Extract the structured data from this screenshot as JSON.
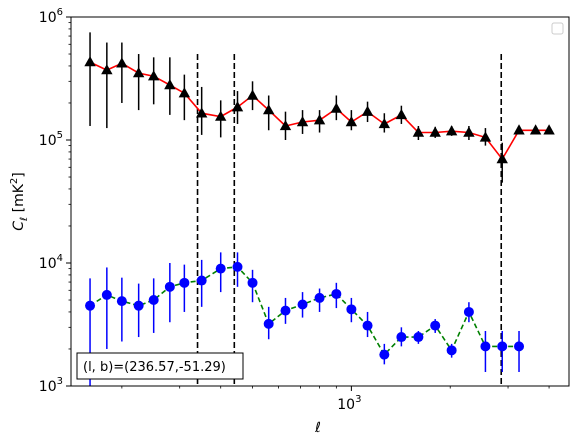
{
  "chart_data": {
    "type": "line",
    "title": "",
    "xlabel": "ℓ",
    "ylabel": "C_ℓ [mK²]",
    "xscale": "log",
    "yscale": "log",
    "xlim": [
      140,
      4600
    ],
    "ylim": [
      1000,
      1000000
    ],
    "x_ticks": [
      {
        "value": 1000,
        "base": "10",
        "exp": "3"
      }
    ],
    "y_ticks": [
      {
        "value": 1000,
        "base": "10",
        "exp": "3"
      },
      {
        "value": 10000,
        "base": "10",
        "exp": "4"
      },
      {
        "value": 100000,
        "base": "10",
        "exp": "5"
      },
      {
        "value": 1000000,
        "base": "10",
        "exp": "6"
      }
    ],
    "vlines": [
      {
        "x": 340,
        "ymin": 1000,
        "ymax": 500000
      },
      {
        "x": 440,
        "ymin": 1000,
        "ymax": 500000
      },
      {
        "x": 2860,
        "ymin": 1000,
        "ymax": 500000
      }
    ],
    "annotation": "(l, b)=(236.57,-51.29)",
    "legend": "top-right (empty)",
    "series": [
      {
        "line_color": "#ff0000",
        "line_style": "solid",
        "marker": "triangle",
        "marker_color": "#000000",
        "error_color": "#000000",
        "x": [
          160,
          180,
          200,
          225,
          250,
          280,
          310,
          350,
          400,
          450,
          500,
          560,
          630,
          710,
          800,
          900,
          1000,
          1120,
          1260,
          1420,
          1600,
          1800,
          2020,
          2280,
          2560,
          2880,
          3240,
          3640,
          4000
        ],
        "y": [
          430000,
          370000,
          420000,
          350000,
          330000,
          280000,
          240000,
          165000,
          155000,
          185000,
          230000,
          175000,
          130000,
          140000,
          145000,
          180000,
          140000,
          170000,
          135000,
          160000,
          115000,
          115000,
          118000,
          115000,
          105000,
          70000,
          120000,
          120000,
          120000
        ],
        "yerr_low": [
          130000,
          125000,
          200000,
          175000,
          195000,
          160000,
          145000,
          110000,
          105000,
          135000,
          175000,
          120000,
          100000,
          112000,
          115000,
          145000,
          120000,
          140000,
          115000,
          135000,
          100000,
          104000,
          108000,
          100000,
          90000,
          45000,
          120000,
          120000,
          120000
        ],
        "yerr_high": [
          750000,
          620000,
          620000,
          500000,
          470000,
          470000,
          340000,
          270000,
          210000,
          250000,
          300000,
          230000,
          170000,
          175000,
          175000,
          230000,
          175000,
          205000,
          165000,
          190000,
          130000,
          128000,
          130000,
          130000,
          125000,
          95000,
          120000,
          120000,
          120000
        ]
      },
      {
        "line_color": "#008000",
        "line_style": "dashed",
        "marker": "circle",
        "marker_color": "#0000ff",
        "error_color": "#0000ff",
        "x": [
          160,
          180,
          200,
          225,
          250,
          280,
          310,
          350,
          400,
          450,
          500,
          560,
          630,
          710,
          800,
          900,
          1000,
          1120,
          1260,
          1420,
          1600,
          1800,
          2020,
          2280,
          2560,
          2880,
          3240
        ],
        "y": [
          4500,
          5500,
          4900,
          4500,
          5000,
          6400,
          6900,
          7200,
          9000,
          9300,
          6900,
          3200,
          4100,
          4600,
          5200,
          5600,
          4200,
          3100,
          1800,
          2500,
          2500,
          3100,
          1950,
          4000,
          2100,
          2100,
          2100
        ],
        "yerr_low": [
          1000,
          2000,
          2300,
          2500,
          2700,
          3300,
          4000,
          4400,
          5800,
          6400,
          4800,
          2400,
          3200,
          3600,
          4000,
          4300,
          3300,
          2500,
          1500,
          2100,
          2200,
          2700,
          1700,
          3300,
          1300,
          1300,
          1300
        ],
        "yerr_high": [
          7500,
          9200,
          7600,
          6800,
          7500,
          10000,
          9700,
          10600,
          12200,
          12200,
          8800,
          4400,
          5200,
          5800,
          6200,
          6900,
          5200,
          4000,
          2200,
          3000,
          2800,
          3500,
          2200,
          4800,
          2800,
          2800,
          2800
        ]
      }
    ]
  }
}
